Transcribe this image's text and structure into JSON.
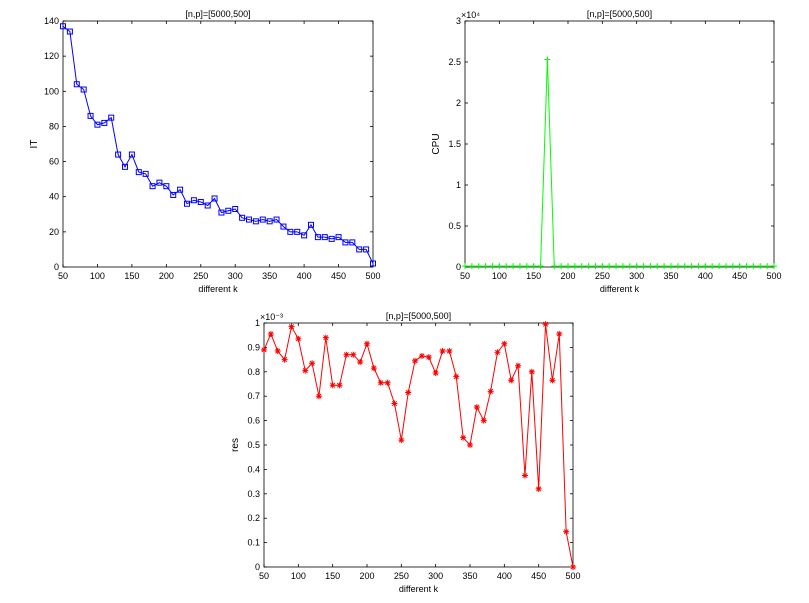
{
  "chart_data": [
    {
      "type": "line",
      "title": "[n,p]=[5000,500]",
      "xlabel": "different k",
      "ylabel": "IT",
      "xlim": [
        50,
        500
      ],
      "ylim": [
        0,
        140
      ],
      "xticks": [
        50,
        100,
        150,
        200,
        250,
        300,
        350,
        400,
        450,
        500
      ],
      "yticks": [
        0,
        20,
        40,
        60,
        80,
        100,
        120,
        140
      ],
      "ytick_labels": [
        "0",
        "20",
        "40",
        "60",
        "80",
        "100",
        "120",
        "140"
      ],
      "exponent_label": "",
      "color": "#0000ff",
      "marker": "square",
      "grid": false,
      "series": [
        {
          "x": [
            50,
            60,
            70,
            80,
            90,
            100,
            110,
            120,
            130,
            140,
            150,
            160,
            170,
            180,
            190,
            200,
            210,
            220,
            230,
            240,
            250,
            260,
            270,
            280,
            290,
            300,
            310,
            320,
            330,
            340,
            350,
            360,
            370,
            380,
            390,
            400,
            410,
            420,
            430,
            440,
            450,
            460,
            470,
            480,
            490,
            500
          ],
          "y": [
            137,
            134,
            104,
            101,
            86,
            81,
            82,
            85,
            64,
            57,
            64,
            54,
            53,
            46,
            48,
            46,
            41,
            44,
            36,
            38,
            37,
            35,
            39,
            31,
            32,
            33,
            28,
            27,
            26,
            27,
            26,
            27,
            23,
            20,
            20,
            18,
            24,
            17,
            17,
            16,
            17,
            14,
            14,
            10,
            10,
            2
          ]
        }
      ]
    },
    {
      "type": "line",
      "title": "[n,p]=[5000,500]",
      "xlabel": "different k",
      "ylabel": "CPU",
      "xlim": [
        50,
        500
      ],
      "ylim": [
        0,
        30000
      ],
      "xticks": [
        50,
        100,
        150,
        200,
        250,
        300,
        350,
        400,
        450,
        500
      ],
      "yticks": [
        0,
        5000,
        10000,
        15000,
        20000,
        25000,
        30000
      ],
      "ytick_labels": [
        "0",
        "0.5",
        "1",
        "1.5",
        "2",
        "2.5",
        "3"
      ],
      "exponent_label": "×10⁴",
      "color": "#00ff00",
      "marker": "plus",
      "grid": false,
      "series": [
        {
          "x": [
            50,
            60,
            70,
            80,
            90,
            100,
            110,
            120,
            130,
            140,
            150,
            160,
            170,
            180,
            190,
            200,
            210,
            220,
            230,
            240,
            250,
            260,
            270,
            280,
            290,
            300,
            310,
            320,
            330,
            340,
            350,
            360,
            370,
            380,
            390,
            400,
            410,
            420,
            430,
            440,
            450,
            460,
            470,
            480,
            490,
            500
          ],
          "y": [
            100,
            100,
            100,
            100,
            100,
            100,
            100,
            100,
            100,
            100,
            100,
            100,
            25300,
            100,
            100,
            100,
            100,
            100,
            100,
            100,
            100,
            100,
            100,
            100,
            100,
            100,
            100,
            100,
            100,
            100,
            100,
            100,
            100,
            100,
            100,
            100,
            100,
            100,
            100,
            100,
            100,
            100,
            100,
            100,
            100,
            100
          ]
        }
      ]
    },
    {
      "type": "line",
      "title": "[n,p]=[5000,500]",
      "xlabel": "different k",
      "ylabel": "res",
      "xlim": [
        50,
        500
      ],
      "ylim": [
        0,
        0.001
      ],
      "xticks": [
        50,
        100,
        150,
        200,
        250,
        300,
        350,
        400,
        450,
        500
      ],
      "yticks": [
        0,
        0.0001,
        0.0002,
        0.0003,
        0.0004,
        0.0005,
        0.0006,
        0.0007,
        0.0008,
        0.0009,
        0.001
      ],
      "ytick_labels": [
        "0",
        "0.1",
        "0.2",
        "0.3",
        "0.4",
        "0.5",
        "0.6",
        "0.7",
        "0.8",
        "0.9",
        "1"
      ],
      "exponent_label": "×10⁻³",
      "color": "#ff0000",
      "marker": "star",
      "grid": false,
      "series": [
        {
          "x": [
            50,
            60,
            70,
            80,
            90,
            100,
            110,
            120,
            130,
            140,
            150,
            160,
            170,
            180,
            190,
            200,
            210,
            220,
            230,
            240,
            250,
            260,
            270,
            280,
            290,
            300,
            310,
            320,
            330,
            340,
            350,
            360,
            370,
            380,
            390,
            400,
            410,
            420,
            430,
            440,
            450,
            460,
            470,
            480,
            490,
            500
          ],
          "y": [
            0.00089,
            0.000955,
            0.000885,
            0.00085,
            0.000985,
            0.000935,
            0.000805,
            0.000835,
            0.0007,
            0.00094,
            0.000745,
            0.000745,
            0.00087,
            0.00087,
            0.00084,
            0.000915,
            0.000815,
            0.000755,
            0.000755,
            0.00067,
            0.00052,
            0.000715,
            0.000845,
            0.000865,
            0.00086,
            0.000795,
            0.000885,
            0.000885,
            0.00078,
            0.00053,
            0.0005,
            0.000655,
            0.0006,
            0.00072,
            0.00088,
            0.000915,
            0.000765,
            0.000825,
            0.000375,
            0.0008,
            0.00032,
            0.000995,
            0.000765,
            0.000955,
            0.000145,
            0.0
          ]
        }
      ]
    }
  ]
}
